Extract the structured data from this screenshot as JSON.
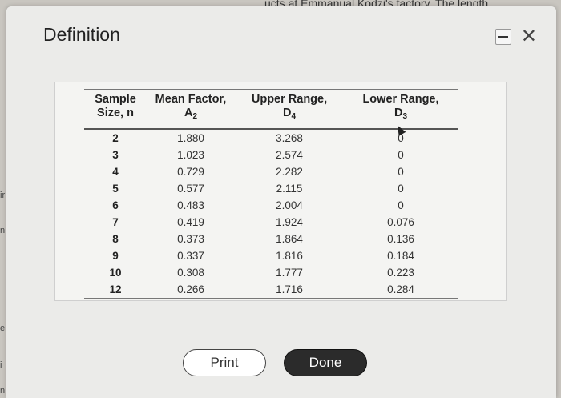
{
  "background": {
    "top_text": "ucts at Emmanual Kodzi's factory. The length",
    "edge_letters": [
      "ir",
      "n",
      "e",
      "i",
      "n"
    ]
  },
  "dialog": {
    "title": "Definition",
    "table": {
      "headers": {
        "sample_size": [
          "Sample",
          "Size, n"
        ],
        "mean_factor": [
          "Mean Factor,",
          "A",
          "2"
        ],
        "upper_range": [
          "Upper Range,",
          "D",
          "4"
        ],
        "lower_range": [
          "Lower Range,",
          "D",
          "3"
        ]
      },
      "rows": [
        {
          "n": "2",
          "a2": "1.880",
          "d4": "3.268",
          "d3": "0"
        },
        {
          "n": "3",
          "a2": "1.023",
          "d4": "2.574",
          "d3": "0"
        },
        {
          "n": "4",
          "a2": "0.729",
          "d4": "2.282",
          "d3": "0"
        },
        {
          "n": "5",
          "a2": "0.577",
          "d4": "2.115",
          "d3": "0"
        },
        {
          "n": "6",
          "a2": "0.483",
          "d4": "2.004",
          "d3": "0"
        },
        {
          "n": "7",
          "a2": "0.419",
          "d4": "1.924",
          "d3": "0.076"
        },
        {
          "n": "8",
          "a2": "0.373",
          "d4": "1.864",
          "d3": "0.136"
        },
        {
          "n": "9",
          "a2": "0.337",
          "d4": "1.816",
          "d3": "0.184"
        },
        {
          "n": "10",
          "a2": "0.308",
          "d4": "1.777",
          "d3": "0.223"
        },
        {
          "n": "12",
          "a2": "0.266",
          "d4": "1.716",
          "d3": "0.284"
        }
      ]
    },
    "buttons": {
      "print": "Print",
      "done": "Done"
    },
    "icons": {
      "minimize": "minimize-icon",
      "close": "close-icon",
      "cursor": "cursor-icon"
    }
  }
}
